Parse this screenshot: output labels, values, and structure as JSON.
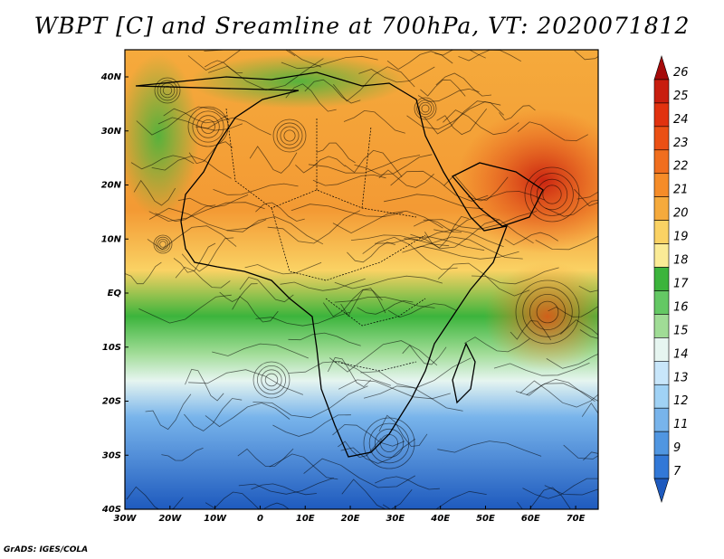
{
  "title": "WBPT [C] and Sreamline at 700hPa, VT: 2020071812",
  "credit": "GrADS: IGES/COLA",
  "map": {
    "lon_range": [
      -30,
      75
    ],
    "lat_range": [
      -40,
      45
    ],
    "x_ticks": [
      "30W",
      "20W",
      "10W",
      "0",
      "10E",
      "20E",
      "30E",
      "40E",
      "50E",
      "60E",
      "70E"
    ],
    "y_ticks": [
      "40N",
      "30N",
      "20N",
      "10N",
      "EQ",
      "10S",
      "20S",
      "30S",
      "40S"
    ]
  },
  "colorbar": {
    "labels": [
      "26",
      "25",
      "24",
      "23",
      "22",
      "21",
      "20",
      "19",
      "18",
      "17",
      "16",
      "15",
      "14",
      "13",
      "12",
      "11",
      "9",
      "7"
    ],
    "colors": [
      "#a50a0a",
      "#c81e0f",
      "#e1320f",
      "#eb5014",
      "#f06e1e",
      "#f58c28",
      "#f5aa3c",
      "#fad264",
      "#faeb96",
      "#3cb43c",
      "#64c864",
      "#a0dc96",
      "#e6f5f0",
      "#c8e6fa",
      "#a0d2f5",
      "#78b4eb",
      "#5096e1",
      "#3278d7",
      "#1e5abe"
    ]
  }
}
